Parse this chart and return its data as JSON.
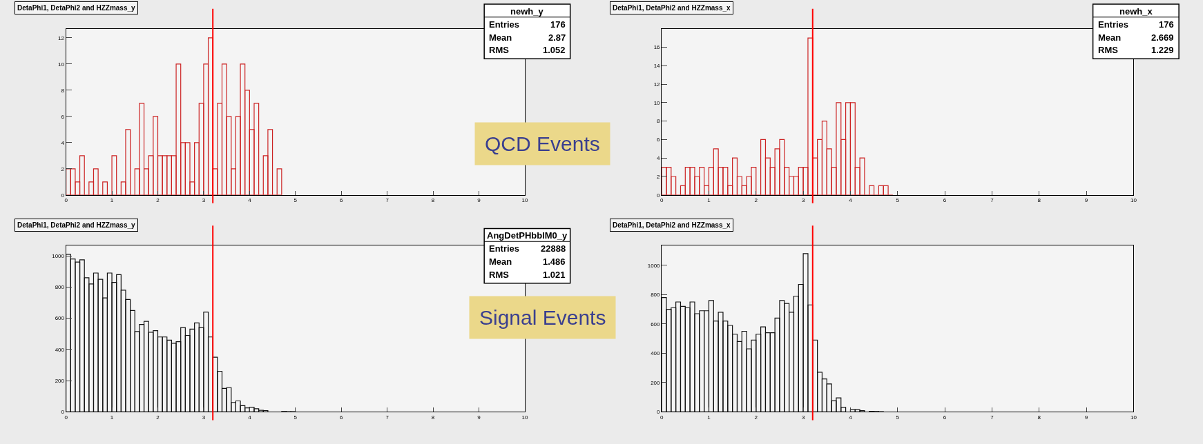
{
  "chart_data": [
    {
      "type": "histogram",
      "title": "DetaPhi1, DetaPhi2 and HZZmass_y",
      "color": "#cc2222",
      "bins": [
        0,
        0.1,
        0.2,
        0.3,
        0.4,
        0.5,
        0.6,
        0.7,
        0.8,
        0.9,
        1,
        1.1,
        1.2,
        1.3,
        1.4,
        1.5,
        1.6,
        1.7,
        1.8,
        1.9,
        2,
        2.1,
        2.2,
        2.3,
        2.4,
        2.5,
        2.6,
        2.7,
        2.8,
        2.9,
        3,
        3.1,
        3.2,
        3.3,
        3.4,
        3.5,
        3.6,
        3.7,
        3.8,
        3.9,
        4,
        4.1,
        4.2,
        4.3,
        4.4,
        4.5,
        4.6,
        4.7
      ],
      "values": [
        2,
        2,
        1,
        3,
        0,
        1,
        2,
        0,
        1,
        0,
        3,
        0,
        1,
        5,
        0,
        2,
        7,
        2,
        3,
        6,
        3,
        3,
        3,
        3,
        10,
        4,
        4,
        1,
        4,
        7,
        10,
        12,
        2,
        7,
        10,
        6,
        2,
        6,
        10,
        8,
        5,
        7,
        0,
        3,
        5,
        0,
        2
      ],
      "xlim": [
        0,
        10
      ],
      "xticks": [
        0,
        1,
        2,
        3,
        4,
        5,
        6,
        7,
        8,
        9,
        10
      ],
      "ylim": [
        0,
        12.7
      ],
      "yticks": [
        0,
        2,
        4,
        6,
        8,
        10,
        12
      ],
      "ref_lines": [
        {
          "axis": "x",
          "value": 3.2,
          "color": "#ff0000"
        }
      ],
      "annotations": [
        "newh_y\nEntries 176\nMean 2.87\nRMS 1.052",
        "QCD Events"
      ]
    },
    {
      "type": "histogram",
      "title": "DetaPhi1, DetaPhi2 and HZZmass_x",
      "color": "#cc2222",
      "bins": [
        0,
        0.1,
        0.2,
        0.3,
        0.4,
        0.5,
        0.6,
        0.7,
        0.8,
        0.9,
        1,
        1.1,
        1.2,
        1.3,
        1.4,
        1.5,
        1.6,
        1.7,
        1.8,
        1.9,
        2,
        2.1,
        2.2,
        2.3,
        2.4,
        2.5,
        2.6,
        2.7,
        2.8,
        2.9,
        3,
        3.1,
        3.2,
        3.3,
        3.4,
        3.5,
        3.6,
        3.7,
        3.8,
        3.9,
        4,
        4.1,
        4.2,
        4.3,
        4.4,
        4.5,
        4.6,
        4.7,
        4.8,
        4.9
      ],
      "values": [
        3,
        3,
        2,
        0,
        1,
        3,
        3,
        2,
        3,
        1,
        3,
        5,
        3,
        3,
        1,
        4,
        2,
        1,
        2,
        3,
        0,
        6,
        4,
        3,
        5,
        6,
        3,
        2,
        2,
        3,
        3,
        17,
        4,
        6,
        8,
        5,
        3,
        10,
        6,
        10,
        10,
        3,
        4,
        0,
        1,
        0,
        1,
        1,
        0
      ],
      "xlim": [
        0,
        10
      ],
      "xticks": [
        0,
        1,
        2,
        3,
        4,
        5,
        6,
        7,
        8,
        9,
        10
      ],
      "ylim": [
        0,
        18
      ],
      "yticks": [
        0,
        2,
        4,
        6,
        8,
        10,
        12,
        14,
        16
      ],
      "ref_lines": [
        {
          "axis": "x",
          "value": 3.2,
          "color": "#ff0000"
        }
      ],
      "annotations": [
        "newh_x\nEntries 176\nMean 2.669\nRMS 1.229"
      ]
    },
    {
      "type": "histogram",
      "title": "DetaPhi1, DetaPhi2 and HZZmass_y",
      "color": "#111111",
      "bins": [
        0,
        0.1,
        0.2,
        0.3,
        0.4,
        0.5,
        0.6,
        0.7,
        0.8,
        0.9,
        1,
        1.1,
        1.2,
        1.3,
        1.4,
        1.5,
        1.6,
        1.7,
        1.8,
        1.9,
        2,
        2.1,
        2.2,
        2.3,
        2.4,
        2.5,
        2.6,
        2.7,
        2.8,
        2.9,
        3,
        3.1,
        3.2,
        3.3,
        3.4,
        3.5,
        3.6,
        3.7,
        3.8,
        3.9,
        4,
        4.1,
        4.2,
        4.3,
        4.4,
        4.5,
        4.6,
        4.7,
        4.8,
        4.9,
        5
      ],
      "values": [
        1010,
        980,
        960,
        975,
        860,
        820,
        890,
        850,
        730,
        890,
        830,
        880,
        780,
        720,
        650,
        515,
        560,
        580,
        510,
        520,
        480,
        480,
        460,
        440,
        450,
        540,
        490,
        530,
        570,
        540,
        640,
        480,
        350,
        260,
        150,
        155,
        60,
        70,
        40,
        25,
        30,
        20,
        10,
        8,
        null,
        null,
        null,
        2,
        1,
        1
      ],
      "xlim": [
        0,
        10
      ],
      "xticks": [
        0,
        1,
        2,
        3,
        4,
        5,
        6,
        7,
        8,
        9,
        10
      ],
      "ylim": [
        0,
        1066
      ],
      "yticks": [
        0,
        200,
        400,
        600,
        800,
        1000
      ],
      "ref_lines": [
        {
          "axis": "x",
          "value": 3.2,
          "color": "#ff0000"
        }
      ],
      "annotations": [
        "AngDetPHbblM0_y\nEntries 22888\nMean 1.486\nRMS 1.021",
        "Signal Events"
      ]
    },
    {
      "type": "histogram",
      "title": "DetaPhi1, DetaPhi2 and HZZmass_x",
      "color": "#111111",
      "bins": [
        0,
        0.1,
        0.2,
        0.3,
        0.4,
        0.5,
        0.6,
        0.7,
        0.8,
        0.9,
        1,
        1.1,
        1.2,
        1.3,
        1.4,
        1.5,
        1.6,
        1.7,
        1.8,
        1.9,
        2,
        2.1,
        2.2,
        2.3,
        2.4,
        2.5,
        2.6,
        2.7,
        2.8,
        2.9,
        3,
        3.1,
        3.2,
        3.3,
        3.4,
        3.5,
        3.6,
        3.7,
        3.8,
        3.9,
        4,
        4.1,
        4.2,
        4.3,
        4.4,
        4.5,
        4.6,
        4.7
      ],
      "values": [
        780,
        700,
        710,
        750,
        720,
        710,
        750,
        670,
        690,
        690,
        760,
        620,
        680,
        620,
        590,
        530,
        480,
        550,
        430,
        490,
        530,
        580,
        540,
        540,
        640,
        760,
        740,
        680,
        790,
        870,
        1080,
        730,
        490,
        270,
        225,
        190,
        75,
        95,
        30,
        null,
        15,
        15,
        8,
        null,
        3,
        2,
        1
      ],
      "xlim": [
        0,
        10
      ],
      "xticks": [
        0,
        1,
        2,
        3,
        4,
        5,
        6,
        7,
        8,
        9,
        10
      ],
      "ylim": [
        0,
        1135
      ],
      "yticks": [
        0,
        200,
        400,
        600,
        800,
        1000
      ],
      "ref_lines": [
        {
          "axis": "x",
          "value": 3.2,
          "color": "#ff0000"
        }
      ]
    }
  ]
}
